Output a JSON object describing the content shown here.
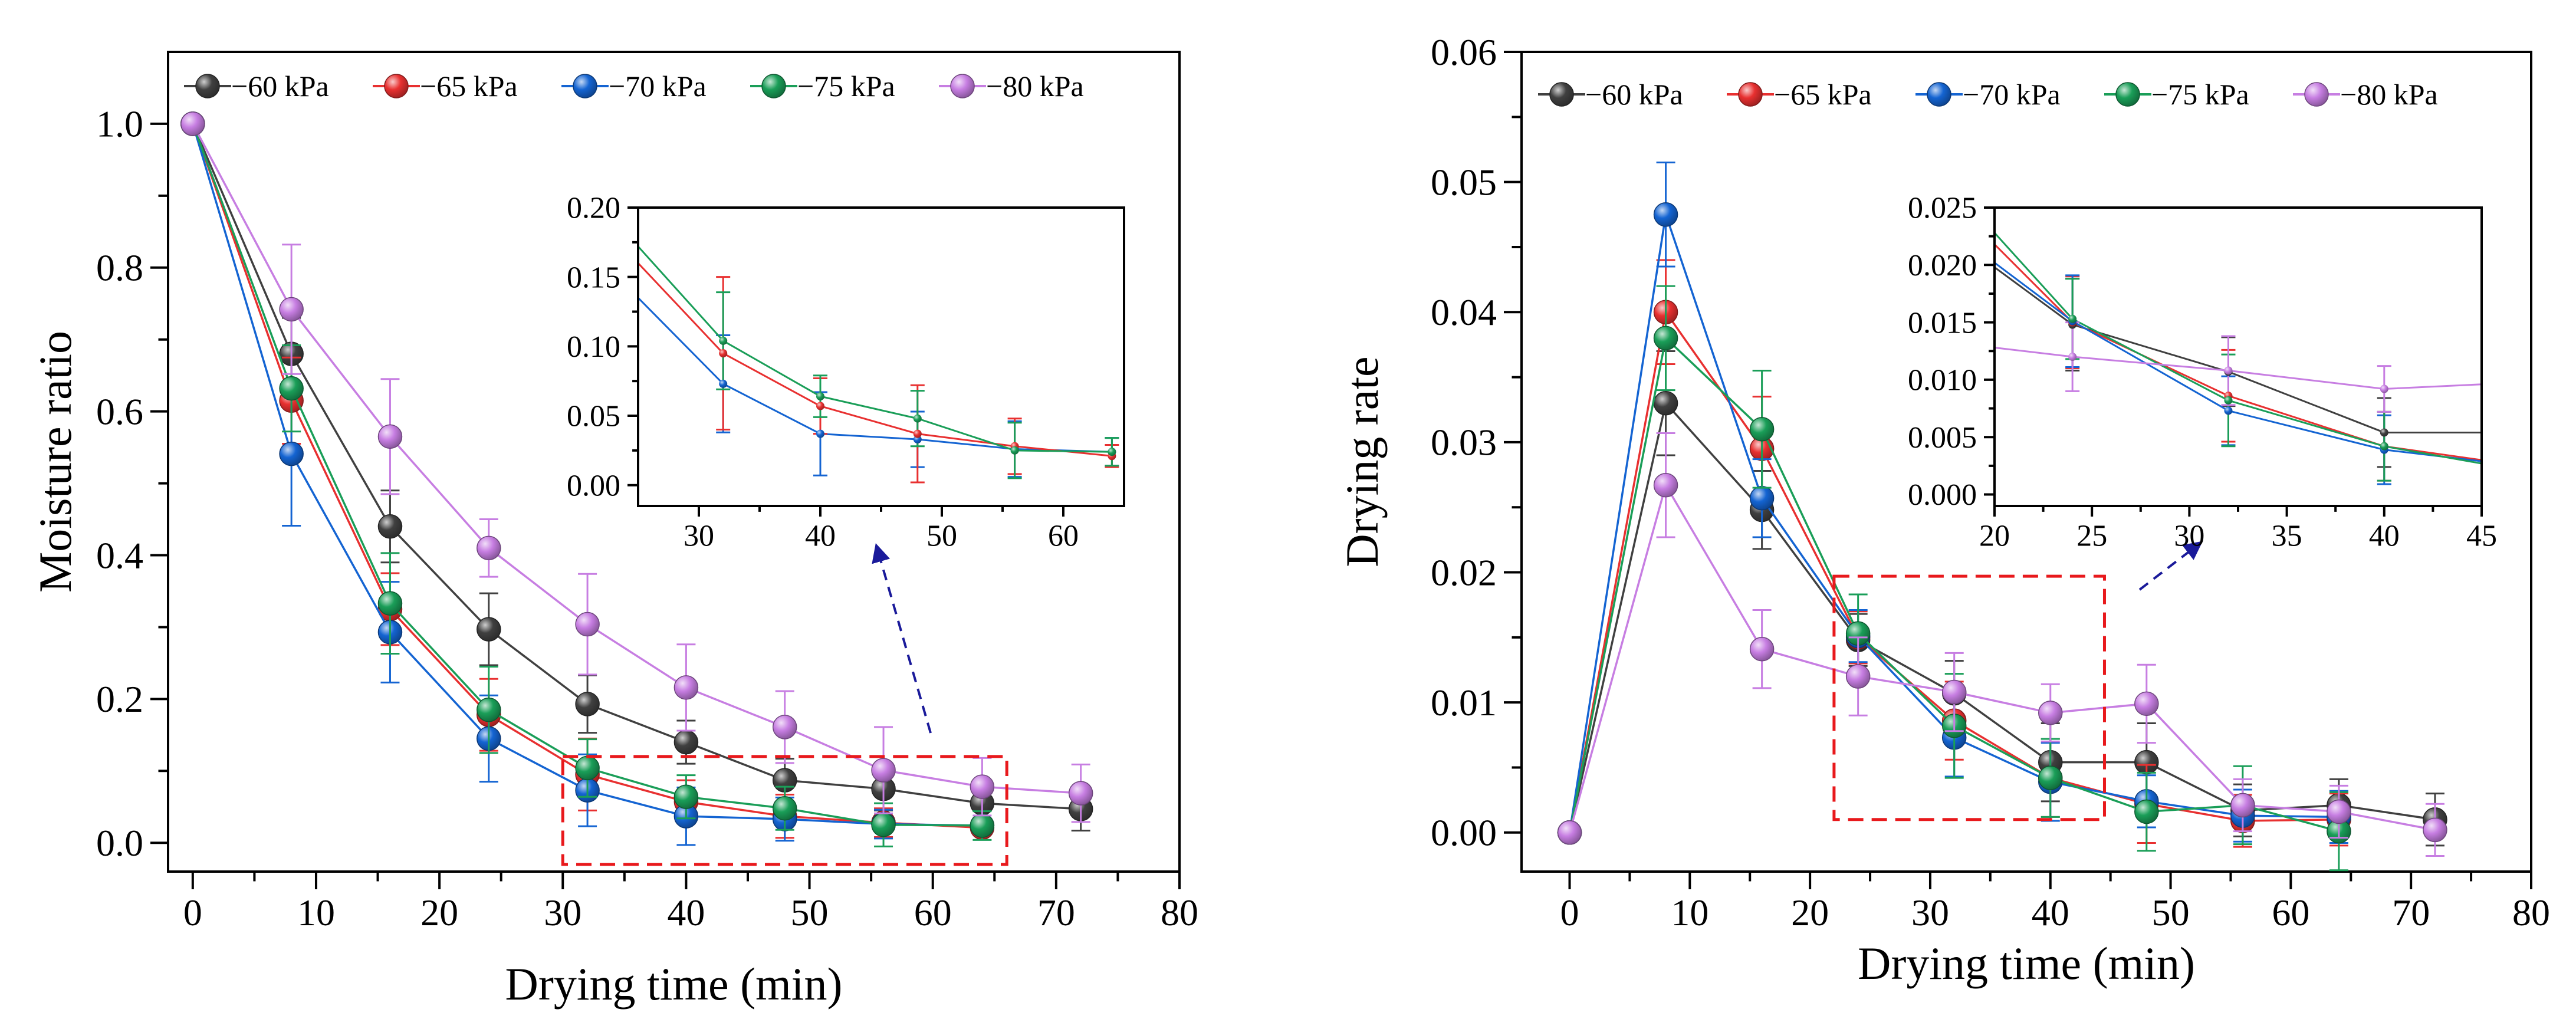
{
  "chart_data": [
    {
      "id": "moisture",
      "type": "line",
      "title": "",
      "xlabel": "Drying time (min)",
      "ylabel": "Moisture ratio",
      "xlim": [
        -2,
        80
      ],
      "ylim": [
        -0.04,
        1.1
      ],
      "xticks": [
        0,
        10,
        20,
        30,
        40,
        50,
        60,
        70,
        80
      ],
      "yticks": [
        0.0,
        0.2,
        0.4,
        0.6,
        0.8,
        1.0
      ],
      "tick_decimals": 1,
      "legend": "top",
      "series": [
        {
          "name": "−60 kPa",
          "color": "#404040",
          "x": [
            0,
            8,
            16,
            24,
            32,
            40,
            48,
            56,
            64,
            72
          ],
          "y": [
            1.0,
            0.68,
            0.44,
            0.297,
            0.193,
            0.14,
            0.087,
            0.075,
            0.055,
            0.047
          ],
          "err": [
            0,
            0.05,
            0.05,
            0.05,
            0.04,
            0.03,
            0.03,
            0.03,
            0.03,
            0.03
          ]
        },
        {
          "name": "−65 kPa",
          "color": "#e83030",
          "x": [
            0,
            8,
            16,
            24,
            32,
            40,
            48,
            56,
            64
          ],
          "y": [
            1.0,
            0.615,
            0.325,
            0.178,
            0.095,
            0.057,
            0.037,
            0.028,
            0.021
          ],
          "err": [
            0,
            0.06,
            0.05,
            0.05,
            0.05,
            0.03,
            0.03,
            0.02,
            0.01
          ]
        },
        {
          "name": "−70 kPa",
          "color": "#1464d2",
          "x": [
            0,
            8,
            16,
            24,
            32,
            40,
            48,
            56,
            64
          ],
          "y": [
            1.0,
            0.541,
            0.293,
            0.145,
            0.073,
            0.037,
            0.033,
            0.026,
            0.024
          ],
          "err": [
            0,
            0.1,
            0.07,
            0.06,
            0.05,
            0.04,
            0.03,
            0.02,
            0.01
          ]
        },
        {
          "name": "−75 kPa",
          "color": "#1a9e58",
          "x": [
            0,
            8,
            16,
            24,
            32,
            40,
            48,
            56,
            64
          ],
          "y": [
            1.0,
            0.632,
            0.333,
            0.185,
            0.104,
            0.064,
            0.048,
            0.025,
            0.024
          ],
          "err": [
            0,
            0.06,
            0.07,
            0.06,
            0.04,
            0.03,
            0.03,
            0.03,
            0.02
          ]
        },
        {
          "name": "−80 kPa",
          "color": "#c77ee2",
          "x": [
            0,
            8,
            16,
            24,
            32,
            40,
            48,
            56,
            64,
            72
          ],
          "y": [
            1.0,
            0.742,
            0.565,
            0.41,
            0.304,
            0.216,
            0.161,
            0.101,
            0.078,
            0.069
          ],
          "err": [
            0,
            0.09,
            0.08,
            0.04,
            0.07,
            0.06,
            0.05,
            0.06,
            0.04,
            0.04
          ]
        }
      ],
      "zoom_box": {
        "x": [
          30,
          66
        ],
        "y": [
          -0.03,
          0.12
        ]
      },
      "inset": {
        "xlim": [
          25,
          65
        ],
        "ylim": [
          -0.015,
          0.2
        ],
        "xticks": [
          30,
          40,
          50,
          60
        ],
        "yticks": [
          0.0,
          0.05,
          0.1,
          0.15,
          0.2
        ],
        "tick_decimals": 2,
        "series": [
          {
            "color": "#1464d2",
            "x": [
              25,
              32,
              40,
              48,
              56,
              64
            ],
            "y": [
              0.135,
              0.073,
              0.037,
              0.033,
              0.026,
              0.024
            ],
            "err": [
              0,
              0.035,
              0.03,
              0.02,
              0.02,
              0.01
            ]
          },
          {
            "color": "#e83030",
            "x": [
              25,
              32,
              40,
              48,
              56,
              64
            ],
            "y": [
              0.16,
              0.095,
              0.057,
              0.037,
              0.028,
              0.021
            ],
            "err": [
              0,
              0.055,
              0.02,
              0.035,
              0.02,
              0.008
            ]
          },
          {
            "color": "#1a9e58",
            "x": [
              25,
              32,
              40,
              48,
              56,
              64
            ],
            "y": [
              0.172,
              0.104,
              0.064,
              0.048,
              0.025,
              0.024
            ],
            "err": [
              0,
              0.035,
              0.015,
              0.02,
              0.02,
              0.01
            ]
          }
        ]
      }
    },
    {
      "id": "rate",
      "type": "line",
      "title": "",
      "xlabel": "Drying time (min)",
      "ylabel": "Drying rate",
      "xlim": [
        -4,
        80
      ],
      "ylim": [
        -0.003,
        0.06
      ],
      "xticks": [
        0,
        10,
        20,
        30,
        40,
        50,
        60,
        70,
        80
      ],
      "yticks": [
        0.0,
        0.01,
        0.02,
        0.03,
        0.04,
        0.05,
        0.06
      ],
      "tick_decimals": 2,
      "legend": "top",
      "series": [
        {
          "name": "−60 kPa",
          "color": "#404040",
          "x": [
            0,
            8,
            16,
            24,
            32,
            40,
            48,
            56,
            64,
            72
          ],
          "y": [
            0,
            0.033,
            0.0248,
            0.0148,
            0.0107,
            0.0054,
            0.0054,
            0.0017,
            0.0021,
            0.001
          ],
          "err": [
            0,
            0.004,
            0.003,
            0.002,
            0.0025,
            0.003,
            0.003,
            0.002,
            0.002,
            0.002
          ]
        },
        {
          "name": "−65 kPa",
          "color": "#e83030",
          "x": [
            0,
            8,
            16,
            24,
            32,
            40,
            48,
            56,
            64
          ],
          "y": [
            0,
            0.04,
            0.0295,
            0.015,
            0.0086,
            0.0042,
            0.0022,
            0.0009,
            0.001
          ],
          "err": [
            0,
            0.004,
            0.004,
            0.002,
            0.003,
            0.003,
            0.003,
            0.002,
            0.002
          ]
        },
        {
          "name": "−70 kPa",
          "color": "#1464d2",
          "x": [
            0,
            8,
            16,
            24,
            32,
            40,
            48,
            56,
            64
          ],
          "y": [
            0,
            0.0475,
            0.0257,
            0.0151,
            0.0073,
            0.0039,
            0.0024,
            0.0013,
            0.0012
          ],
          "err": [
            0,
            0.004,
            0.003,
            0.002,
            0.003,
            0.003,
            0.002,
            0.002,
            0.002
          ]
        },
        {
          "name": "−75 kPa",
          "color": "#1a9e58",
          "x": [
            0,
            8,
            16,
            24,
            32,
            40,
            48,
            56,
            64
          ],
          "y": [
            0,
            0.038,
            0.031,
            0.0153,
            0.0082,
            0.0042,
            0.0016,
            0.0021,
            0.0001
          ],
          "err": [
            0,
            0.004,
            0.0045,
            0.003,
            0.004,
            0.003,
            0.003,
            0.003,
            0.003
          ]
        },
        {
          "name": "−80 kPa",
          "color": "#c77ee2",
          "x": [
            0,
            8,
            16,
            24,
            32,
            40,
            48,
            56,
            64,
            72
          ],
          "y": [
            0,
            0.0267,
            0.0141,
            0.012,
            0.0108,
            0.0092,
            0.0099,
            0.0021,
            0.0016,
            0.0002
          ],
          "err": [
            0,
            0.004,
            0.003,
            0.003,
            0.003,
            0.0022,
            0.003,
            0.002,
            0.002,
            0.002
          ]
        }
      ],
      "zoom_box": {
        "x": [
          22,
          44.5
        ],
        "y": [
          0.001,
          0.0197
        ]
      },
      "inset": {
        "xlim": [
          20,
          45
        ],
        "ylim": [
          -0.001,
          0.025
        ],
        "xticks": [
          20,
          25,
          30,
          35,
          40,
          45
        ],
        "yticks": [
          0.0,
          0.005,
          0.01,
          0.015,
          0.02,
          0.025
        ],
        "tick_decimals": 3,
        "series": [
          {
            "color": "#404040",
            "x": [
              20,
              24,
              32,
              40,
              45
            ],
            "y": [
              0.0198,
              0.0148,
              0.0107,
              0.0054,
              0.0054
            ],
            "err": [
              0,
              0.004,
              0.003,
              0.003,
              0
            ]
          },
          {
            "color": "#e83030",
            "x": [
              20,
              24,
              32,
              40,
              45
            ],
            "y": [
              0.0218,
              0.015,
              0.0086,
              0.0042,
              0.003
            ],
            "err": [
              0,
              0.004,
              0.004,
              0.003,
              0
            ]
          },
          {
            "color": "#1464d2",
            "x": [
              20,
              24,
              32,
              40,
              45
            ],
            "y": [
              0.0202,
              0.0151,
              0.0073,
              0.0039,
              0.0029
            ],
            "err": [
              0,
              0.004,
              0.003,
              0.003,
              0
            ]
          },
          {
            "color": "#1a9e58",
            "x": [
              20,
              24,
              32,
              40,
              45
            ],
            "y": [
              0.0228,
              0.0153,
              0.0082,
              0.0042,
              0.0027
            ],
            "err": [
              0,
              0.0035,
              0.004,
              0.003,
              0
            ]
          },
          {
            "color": "#c77ee2",
            "x": [
              20,
              24,
              32,
              40,
              45
            ],
            "y": [
              0.0128,
              0.012,
              0.0108,
              0.0092,
              0.0096
            ],
            "err": [
              0,
              0.003,
              0.003,
              0.002,
              0
            ]
          }
        ]
      }
    }
  ]
}
